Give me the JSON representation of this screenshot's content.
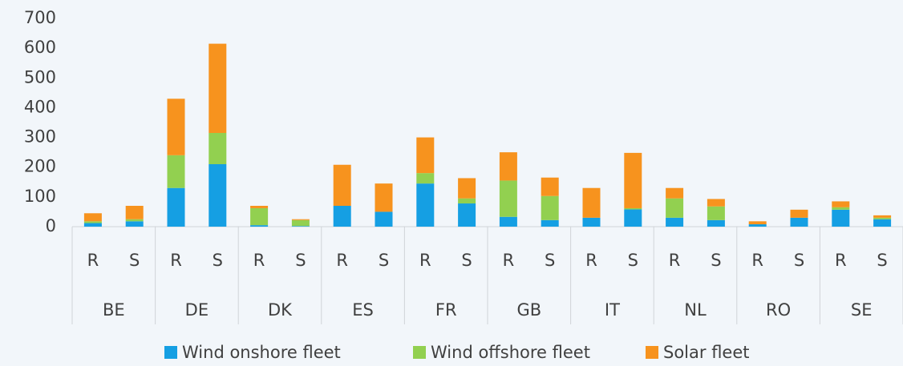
{
  "chart_data": {
    "type": "stacked_bar",
    "groups": [
      "BE",
      "DE",
      "DK",
      "ES",
      "FR",
      "GB",
      "IT",
      "NL",
      "RO",
      "SE"
    ],
    "categories": [
      "R",
      "S",
      "R",
      "S",
      "R",
      "S",
      "R",
      "S",
      "R",
      "S",
      "R",
      "S",
      "R",
      "S",
      "R",
      "S",
      "R",
      "S",
      "R",
      "S"
    ],
    "series": [
      {
        "name": "Wind onshore fleet",
        "color": "#159fe3",
        "values": [
          12,
          18,
          130,
          210,
          5,
          2,
          70,
          50,
          145,
          78,
          33,
          22,
          30,
          58,
          30,
          22,
          8,
          30,
          57,
          25
        ]
      },
      {
        "name": "Wind offshore fleet",
        "color": "#92d050",
        "values": [
          6,
          7,
          110,
          105,
          57,
          20,
          0,
          0,
          35,
          17,
          122,
          81,
          0,
          4,
          65,
          46,
          0,
          0,
          8,
          5
        ]
      },
      {
        "name": "Solar fleet",
        "color": "#f7931e",
        "values": [
          27,
          45,
          190,
          300,
          8,
          3,
          138,
          95,
          120,
          68,
          95,
          62,
          100,
          186,
          35,
          25,
          10,
          27,
          20,
          8
        ]
      }
    ],
    "ylim": [
      0,
      700
    ],
    "yticks": [
      0,
      100,
      200,
      300,
      400,
      500,
      600,
      700
    ]
  }
}
